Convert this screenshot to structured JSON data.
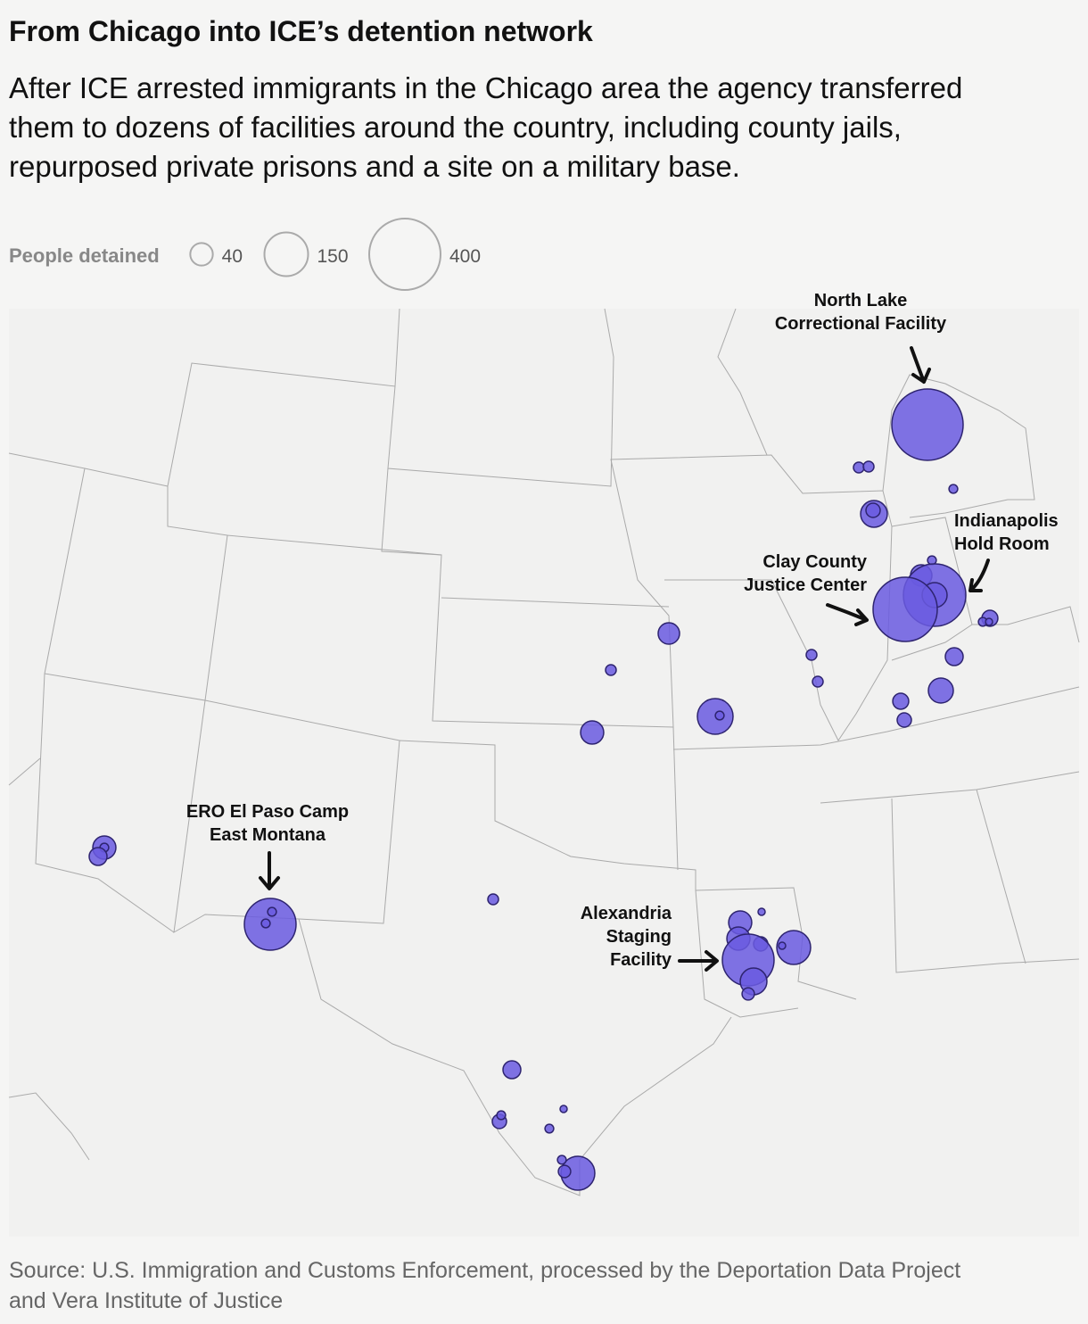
{
  "title": "From Chicago into ICE’s detention network",
  "subtitle": [
    "After ICE arrested immigrants in the Chicago area the agency transferred",
    "them to dozens of facilities around the country, including county jails,",
    "repurposed private prisons and a site on a military base."
  ],
  "legend": {
    "title": "People detained",
    "sizes": [
      40,
      150,
      400
    ]
  },
  "bubbles": [
    400,
    9,
    9,
    6,
    56,
    16,
    6,
    36,
    306,
    49,
    324,
    20,
    6,
    4,
    25,
    49,
    20,
    16,
    9,
    9,
    36,
    9,
    100,
    6,
    42,
    42,
    6,
    25,
    210,
    6,
    6,
    9,
    42,
    42,
    4,
    16,
    90,
    4,
    210,
    56,
    12,
    25,
    16,
    6,
    4,
    6,
    90,
    6,
    12
  ],
  "color": "#6a5ae0",
  "annotations": [
    {
      "lines": [
        "North Lake",
        "Correctional Facility"
      ]
    },
    {
      "lines": [
        "Indianapolis",
        "Hold Room"
      ]
    },
    {
      "lines": [
        "Clay County",
        "Justice Center"
      ]
    },
    {
      "lines": [
        "ERO El Paso Camp",
        "East Montana"
      ]
    },
    {
      "lines": [
        "Alexandria",
        "Staging",
        "Facility"
      ]
    }
  ],
  "source": [
    "Source: U.S. Immigration and Customs Enforcement, processed by the Deportation Data Project",
    "and Vera Institute of Justice"
  ]
}
